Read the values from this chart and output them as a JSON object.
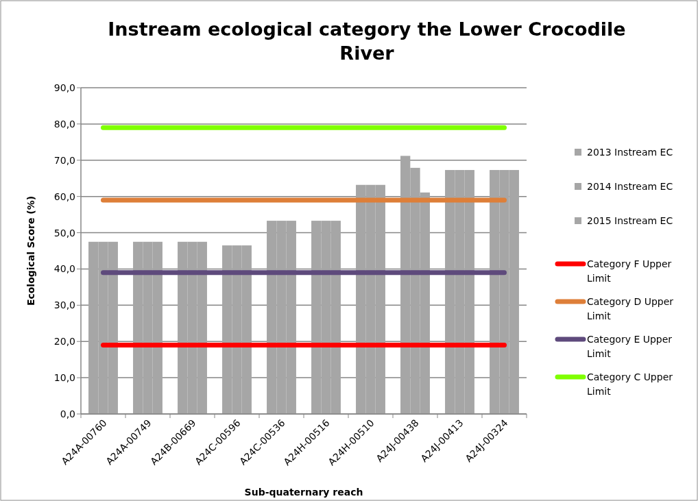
{
  "chart_data": {
    "type": "bar",
    "title": "Instream ecological category the Lower Crocodile River",
    "xlabel": "Sub-quaternary reach",
    "ylabel": "Ecological Score (%)",
    "categories": [
      "A24A-00760",
      "A24A-00749",
      "A24B-00669",
      "A24C-00596",
      "A24C-00536",
      "A24H-00516",
      "A24H-00510",
      "A24J-00438",
      "A24J-00413",
      "A24J-00324"
    ],
    "series": [
      {
        "name": "2013 Instream EC",
        "color": "#a6a6a6",
        "values": [
          47.5,
          47.5,
          47.5,
          46.5,
          53.3,
          53.3,
          63.2,
          71.2,
          67.3,
          67.3
        ]
      },
      {
        "name": "2014 Instream EC",
        "color": "#a6a6a6",
        "values": [
          47.5,
          47.5,
          47.5,
          46.5,
          53.3,
          53.3,
          63.2,
          67.9,
          67.3,
          67.3
        ]
      },
      {
        "name": "2015 Instream EC",
        "color": "#a6a6a6",
        "values": [
          47.5,
          47.5,
          47.5,
          46.5,
          53.3,
          53.3,
          63.2,
          61.1,
          67.3,
          67.3
        ]
      },
      {
        "name": "Category F Upper Limit",
        "type": "line",
        "color": "#ff0000",
        "values": [
          19,
          19,
          19,
          19,
          19,
          19,
          19,
          19,
          19,
          19
        ]
      },
      {
        "name": "Category D Upper Limit",
        "type": "line",
        "color": "#de7f39",
        "values": [
          59,
          59,
          59,
          59,
          59,
          59,
          59,
          59,
          59,
          59
        ]
      },
      {
        "name": "Category E Upper Limit",
        "type": "line",
        "color": "#5e4a7c",
        "values": [
          39,
          39,
          39,
          39,
          39,
          39,
          39,
          39,
          39,
          39
        ]
      },
      {
        "name": "Category C Upper Limit",
        "type": "line",
        "color": "#7fff00",
        "values": [
          79,
          79,
          79,
          79,
          79,
          79,
          79,
          79,
          79,
          79
        ]
      }
    ],
    "ylim": [
      0,
      90
    ],
    "yticks": [
      {
        "value": 0,
        "label": "0,0"
      },
      {
        "value": 10,
        "label": "10,0"
      },
      {
        "value": 20,
        "label": "20,0"
      },
      {
        "value": 30,
        "label": "30,0"
      },
      {
        "value": 40,
        "label": "40,0"
      },
      {
        "value": 50,
        "label": "50,0"
      },
      {
        "value": 60,
        "label": "60,0"
      },
      {
        "value": 70,
        "label": "70,0"
      },
      {
        "value": 80,
        "label": "80,0"
      },
      {
        "value": 90,
        "label": "90,0"
      }
    ],
    "grid": "y",
    "legend": "right"
  }
}
